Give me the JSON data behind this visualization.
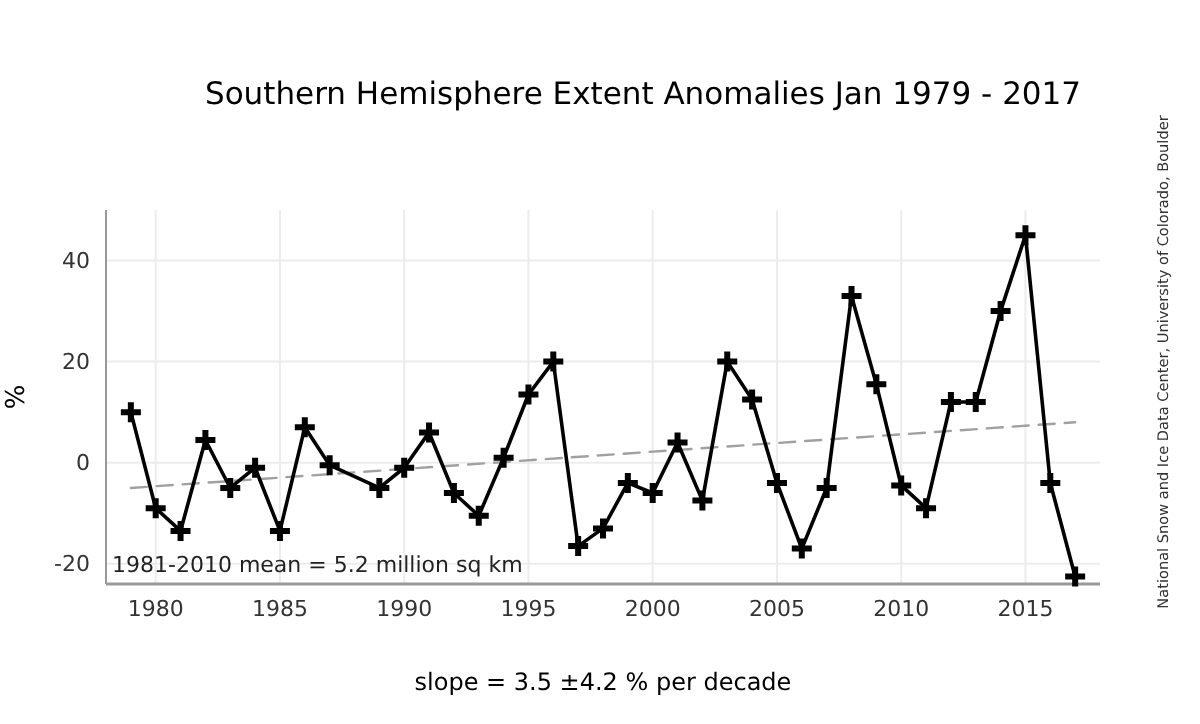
{
  "chart_data": {
    "type": "line",
    "title": "Southern Hemisphere Extent Anomalies Jan 1979 - 2017",
    "ylabel": "%",
    "x": [
      1979,
      1980,
      1981,
      1982,
      1983,
      1984,
      1985,
      1986,
      1987,
      1989,
      1990,
      1991,
      1992,
      1993,
      1994,
      1995,
      1996,
      1997,
      1998,
      1999,
      2000,
      2001,
      2002,
      2003,
      2004,
      2005,
      2006,
      2007,
      2008,
      2009,
      2010,
      2011,
      2012,
      2013,
      2014,
      2015,
      2016,
      2017
    ],
    "series": [
      {
        "color": "#000000",
        "marker": "cross",
        "line_style": "solid",
        "values": [
          10,
          -9,
          -13.5,
          4.5,
          -5,
          -1,
          -13.5,
          7,
          -0.5,
          -5,
          -1,
          6,
          -6,
          -10.5,
          1,
          13.5,
          20,
          -16.5,
          -13,
          -4,
          -6,
          4,
          -7.5,
          20,
          12.5,
          -4,
          -17,
          -5,
          33,
          15.5,
          -4.5,
          -9,
          12,
          12,
          30,
          45,
          -4,
          -22.5
        ]
      },
      {
        "color": "#a0a0a0",
        "marker": "none",
        "line_style": "dashed",
        "x": [
          1979,
          2017
        ],
        "values": [
          -5,
          8
        ]
      }
    ],
    "xlim": [
      1978,
      2018
    ],
    "ylim": [
      -24,
      50
    ],
    "xticks": [
      1980,
      1985,
      1990,
      1995,
      2000,
      2005,
      2010,
      2015
    ],
    "yticks": [
      -20,
      0,
      20,
      40
    ],
    "grid": true,
    "annotations": [
      {
        "text": "1981-2010 mean = 5.2 million sq km"
      },
      {
        "text": "slope = 3.5 ±4.2 % per decade"
      },
      {
        "text": "National Snow and Ice Data Center, University of Colorado, Boulder"
      }
    ]
  }
}
